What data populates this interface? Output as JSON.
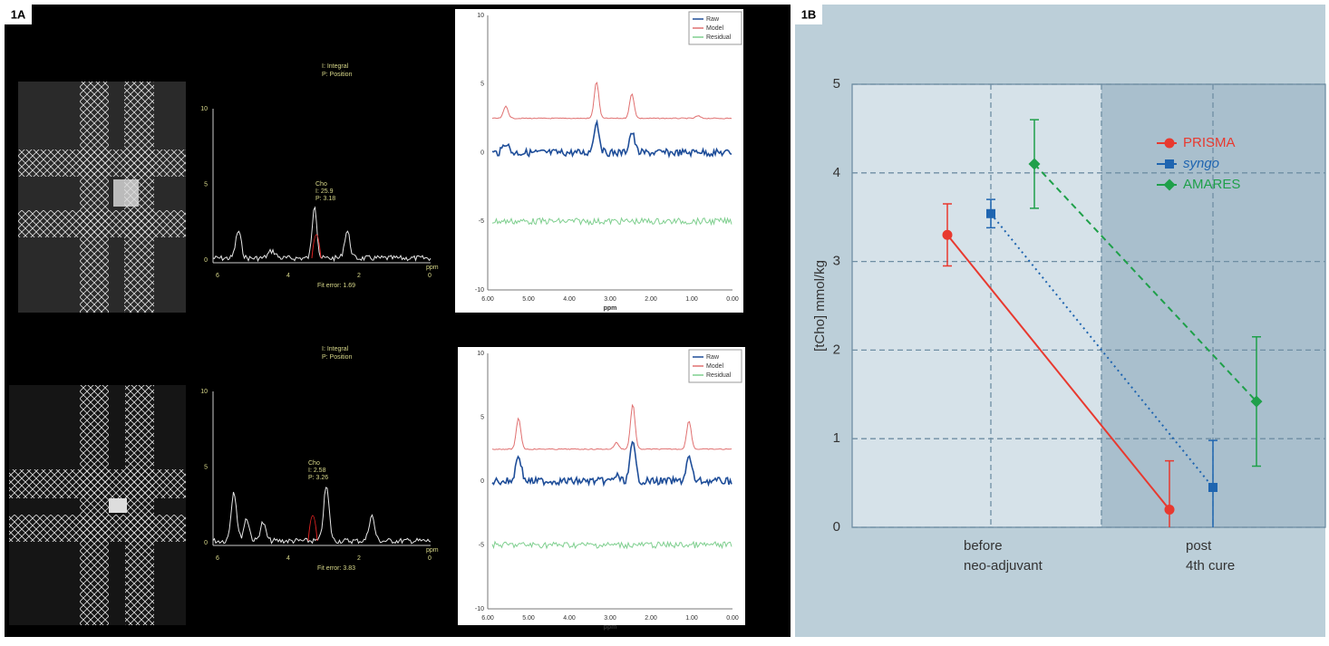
{
  "panel_labels": [
    "1A",
    "1B"
  ],
  "panel_a": {
    "top": {
      "fit": {
        "header": [
          "I: Integral",
          "P: Position"
        ],
        "peak": [
          "Cho",
          "I: 25.9",
          "P: 3.18"
        ],
        "fit_error": "Fit error: 1.69",
        "yticks": [
          "10",
          "5",
          "0"
        ],
        "xticks": [
          "6",
          "4",
          "2",
          "0"
        ],
        "x_unit": "ppm"
      },
      "model": {
        "legend": [
          "Raw",
          "Model",
          "Residual"
        ],
        "yticks": [
          "10",
          "5",
          "0",
          "-5",
          "-10"
        ],
        "xticks": [
          "6.00",
          "5.00",
          "4.00",
          "3.00",
          "2.00",
          "1.00",
          "0.00"
        ],
        "x_label": "ppm"
      }
    },
    "bottom": {
      "fit": {
        "header": [
          "I: Integral",
          "P: Position"
        ],
        "peak": [
          "Cho",
          "I: 2.58",
          "P: 3.26"
        ],
        "fit_error": "Fit error: 3.83",
        "yticks": [
          "10",
          "5",
          "0"
        ],
        "xticks": [
          "6",
          "4",
          "2",
          "0"
        ],
        "x_unit": "ppm"
      },
      "model": {
        "legend": [
          "Raw",
          "Model",
          "Residual"
        ],
        "yticks": [
          "10",
          "5",
          "0",
          "-5",
          "-10"
        ],
        "xticks": [
          "6.00",
          "5.00",
          "4.00",
          "3.00",
          "2.00",
          "1.00",
          "0.00"
        ],
        "x_label": "ppm"
      }
    }
  },
  "chart_data": {
    "type": "line",
    "y_label": "[tCho] mmol/kg",
    "categories": [
      [
        "before",
        "neo-adjuvant"
      ],
      [
        "post",
        "4th cure"
      ]
    ],
    "series": [
      {
        "name": "PRISMA",
        "color": "#e8392f",
        "marker": "circle",
        "dash": "solid",
        "values": [
          3.3,
          0.2
        ],
        "errors": [
          0.35,
          0.55
        ]
      },
      {
        "name": "syngo",
        "color": "#1f65b0",
        "marker": "square",
        "dash": "dotted",
        "italic": true,
        "values": [
          3.54,
          0.45
        ],
        "errors": [
          0.16,
          0.53
        ]
      },
      {
        "name": "AMARES",
        "color": "#1fa04a",
        "marker": "diamond",
        "dash": "dashed",
        "values": [
          4.1,
          1.42
        ],
        "errors": [
          0.5,
          0.73
        ]
      }
    ],
    "ylim": [
      0,
      5
    ],
    "yticks": [
      0,
      1,
      2,
      3,
      4,
      5
    ],
    "grid": true,
    "legend": "upper right"
  }
}
